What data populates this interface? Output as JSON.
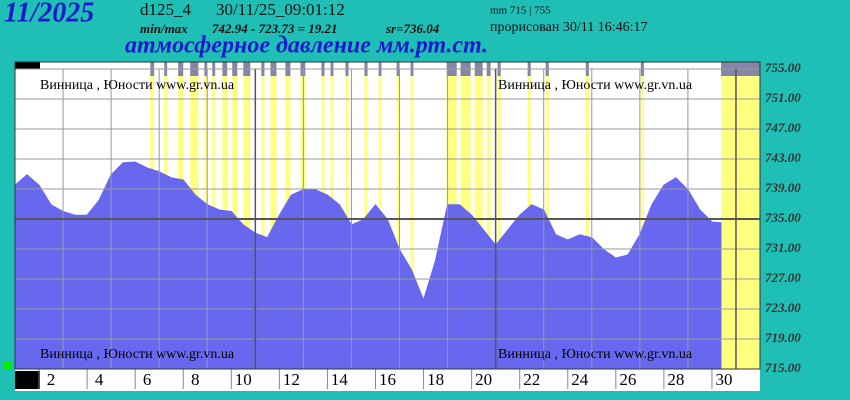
{
  "header": {
    "month": "11/2025",
    "station_code": "d125_4",
    "timestamp": "30/11/25_09:01:12",
    "minmax_label": "min/max",
    "minmax": "742.94 - 723.73 = 19.21",
    "mean": "sr=736.04",
    "range_note": "mm 715 | 755",
    "drawn": "прорисован 30/11 16:46:17"
  },
  "chart_data": {
    "type": "area",
    "title": "атмосферное давление мм.рт.ст.",
    "watermark": "Винница , Юности  www.gr.vn.ua",
    "x": [
      1,
      1.5,
      2,
      2.5,
      3,
      3.5,
      4,
      4.5,
      5,
      5.5,
      6,
      6.5,
      7,
      7.5,
      8,
      8.5,
      9,
      9.5,
      10,
      10.5,
      11,
      11.5,
      12,
      12.5,
      13,
      13.5,
      14,
      14.5,
      15,
      15.5,
      16,
      16.5,
      17,
      17.5,
      18,
      18.5,
      19,
      19.5,
      20,
      20.5,
      21,
      21.5,
      22,
      22.5,
      23,
      23.5,
      24,
      24.5,
      25,
      25.5,
      26,
      26.5,
      27,
      27.5,
      28,
      28.5,
      29,
      29.5,
      30,
      30.375
    ],
    "series": [
      {
        "color": "#6868ee",
        "values": [
          739.5,
          740.9,
          739.5,
          736.9,
          736,
          735.5,
          735.5,
          737.5,
          740.9,
          742.5,
          742.6,
          741.8,
          741.3,
          740.5,
          740.2,
          738.2,
          736.9,
          736.2,
          736,
          734.2,
          733.1,
          732.5,
          735.5,
          738.2,
          738.9,
          738.9,
          738.2,
          736.9,
          734.2,
          734.9,
          736.9,
          734.9,
          730.9,
          728.2,
          724.2,
          729.5,
          736.9,
          736.9,
          735.5,
          733.5,
          731.5,
          733.5,
          735.5,
          736.9,
          736.2,
          732.9,
          732.2,
          732.9,
          732.5,
          730.9,
          729.8,
          730.2,
          732.9,
          736.9,
          739.5,
          740.5,
          738.9,
          736.2,
          734.6,
          734.5
        ]
      }
    ],
    "highlights": [
      [
        6.63,
        6.79
      ],
      [
        7.21,
        7.33
      ],
      [
        7.79,
        8.0
      ],
      [
        8.29,
        8.63
      ],
      [
        8.88,
        9.0
      ],
      [
        9.21,
        9.33
      ],
      [
        9.63,
        9.83
      ],
      [
        10.04,
        10.25
      ],
      [
        10.5,
        10.79
      ],
      [
        11.25,
        11.38
      ],
      [
        11.63,
        11.88
      ],
      [
        12.25,
        12.46
      ],
      [
        12.88,
        13.08
      ],
      [
        13.75,
        13.88
      ],
      [
        14.13,
        14.25
      ],
      [
        14.75,
        14.88
      ],
      [
        15.54,
        15.67
      ],
      [
        16.13,
        16.25
      ],
      [
        16.88,
        17.0
      ],
      [
        17.46,
        17.58
      ],
      [
        18.96,
        19.38
      ],
      [
        19.54,
        19.96
      ],
      [
        20.13,
        20.46
      ],
      [
        20.63,
        20.79
      ],
      [
        21.08,
        21.21
      ],
      [
        22.33,
        22.46
      ],
      [
        23.08,
        23.21
      ],
      [
        24.75,
        24.88
      ],
      [
        27.04,
        27.17
      ],
      [
        30.38,
        32
      ]
    ],
    "highlight_color": "#ffff80",
    "marker_color": "#8585a8",
    "xlim": [
      1,
      32
    ],
    "xticks": [
      {
        "value": 2.5,
        "label": "2"
      },
      {
        "value": 4.5,
        "label": "4"
      },
      {
        "value": 6.5,
        "label": "6"
      },
      {
        "value": 8.5,
        "label": "8"
      },
      {
        "value": 10.5,
        "label": "10"
      },
      {
        "value": 12.5,
        "label": "12"
      },
      {
        "value": 14.5,
        "label": "14"
      },
      {
        "value": 16.5,
        "label": "16"
      },
      {
        "value": 18.5,
        "label": "18"
      },
      {
        "value": 20.5,
        "label": "20"
      },
      {
        "value": 22.5,
        "label": "22"
      },
      {
        "value": 24.5,
        "label": "24"
      },
      {
        "value": 26.5,
        "label": "26"
      },
      {
        "value": 28.5,
        "label": "28"
      },
      {
        "value": 30.5,
        "label": "30"
      }
    ],
    "x_gridlines": [
      3,
      5,
      7,
      9,
      11,
      13,
      15,
      17,
      19,
      21,
      23,
      25,
      27,
      29,
      31
    ],
    "ylim": [
      715,
      755
    ],
    "yticks": [
      {
        "value": 715,
        "label": "715.00"
      },
      {
        "value": 719,
        "label": "719.00"
      },
      {
        "value": 723,
        "label": "723.00"
      },
      {
        "value": 727,
        "label": "727.00"
      },
      {
        "value": 731,
        "label": "731.00"
      },
      {
        "value": 735,
        "label": "735.00"
      },
      {
        "value": 739,
        "label": "739.00"
      },
      {
        "value": 743,
        "label": "743.00"
      },
      {
        "value": 747,
        "label": "747.00"
      },
      {
        "value": 751,
        "label": "751.00"
      },
      {
        "value": 755,
        "label": "755.00"
      }
    ],
    "reference_line": 735,
    "grid": true
  }
}
